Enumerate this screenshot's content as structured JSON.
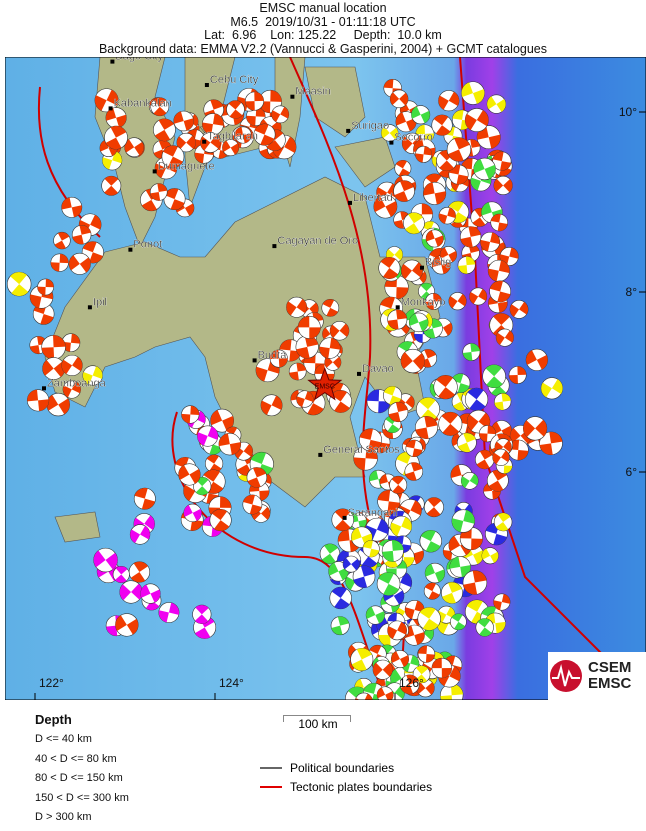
{
  "header": {
    "title": "EMSC manual location",
    "event": "M6.5  2019/10/31 - 01:11:18 UTC",
    "location": "Lat:  6.96    Lon: 125.22     Depth:  10.0 km",
    "background": "Background data: EMMA V2.2 (Vannucci & Gasperini, 2004) + GCMT catalogues"
  },
  "epicenter": {
    "lat": 6.96,
    "lon": 125.22,
    "depth_km": 10.0,
    "magnitude": 6.5,
    "label": "EMSC",
    "color": "#e02000"
  },
  "map": {
    "lon_ticks": [
      {
        "value": 122,
        "label": "122°"
      },
      {
        "value": 124,
        "label": "124°"
      },
      {
        "value": 126,
        "label": "126°"
      }
    ],
    "lat_ticks": [
      {
        "value": 10,
        "label": "10°"
      },
      {
        "value": 8,
        "label": "8°"
      },
      {
        "value": 6,
        "label": "6°"
      }
    ],
    "cities": [
      {
        "name": "Bago City",
        "lat": 10.56,
        "lon": 122.86
      },
      {
        "name": "Cebu City",
        "lat": 10.3,
        "lon": 123.91
      },
      {
        "name": "Kabankalan",
        "lat": 10.04,
        "lon": 122.84
      },
      {
        "name": "Maasin",
        "lat": 10.17,
        "lon": 124.86
      },
      {
        "name": "Surigao",
        "lat": 9.79,
        "lon": 125.48
      },
      {
        "name": "Tagbilaran",
        "lat": 9.67,
        "lon": 123.88
      },
      {
        "name": "Socorro",
        "lat": 9.66,
        "lon": 125.96
      },
      {
        "name": "Dumaguete",
        "lat": 9.34,
        "lon": 123.33
      },
      {
        "name": "Libertad",
        "lat": 8.99,
        "lon": 125.5
      },
      {
        "name": "Ponot",
        "lat": 8.47,
        "lon": 123.06
      },
      {
        "name": "Cagayan de Oro",
        "lat": 8.51,
        "lon": 124.66
      },
      {
        "name": "Bislig",
        "lat": 8.27,
        "lon": 126.3
      },
      {
        "name": "Ipil",
        "lat": 7.83,
        "lon": 122.61
      },
      {
        "name": "Monkayo",
        "lat": 7.83,
        "lon": 126.03
      },
      {
        "name": "Budta",
        "lat": 7.24,
        "lon": 124.44
      },
      {
        "name": "Davao",
        "lat": 7.09,
        "lon": 125.6
      },
      {
        "name": "Zamboanga",
        "lat": 6.93,
        "lon": 122.1
      },
      {
        "name": "General Santos",
        "lat": 6.19,
        "lon": 125.17
      },
      {
        "name": "Sarangani",
        "lat": 5.49,
        "lon": 125.44
      }
    ]
  },
  "legend": {
    "title": "Depth",
    "classes": [
      {
        "label": "D <= 40 km",
        "color": "#f03c00"
      },
      {
        "label": "40 < D <= 80 km",
        "color": "#f5ee00"
      },
      {
        "label": "80 < D <= 150 km",
        "color": "#40dd40"
      },
      {
        "label": "150 < D <= 300 km",
        "color": "#2a2ae0"
      },
      {
        "label": "D > 300 km",
        "color": "#f000f0"
      }
    ],
    "scale_label": "100 km",
    "lines": [
      {
        "label": "Political boundaries",
        "color": "#666666"
      },
      {
        "label": "Tectonic plates boundaries",
        "color": "#e00000"
      }
    ]
  },
  "logo": {
    "line1": "CSEM",
    "line2": "EMSC"
  }
}
